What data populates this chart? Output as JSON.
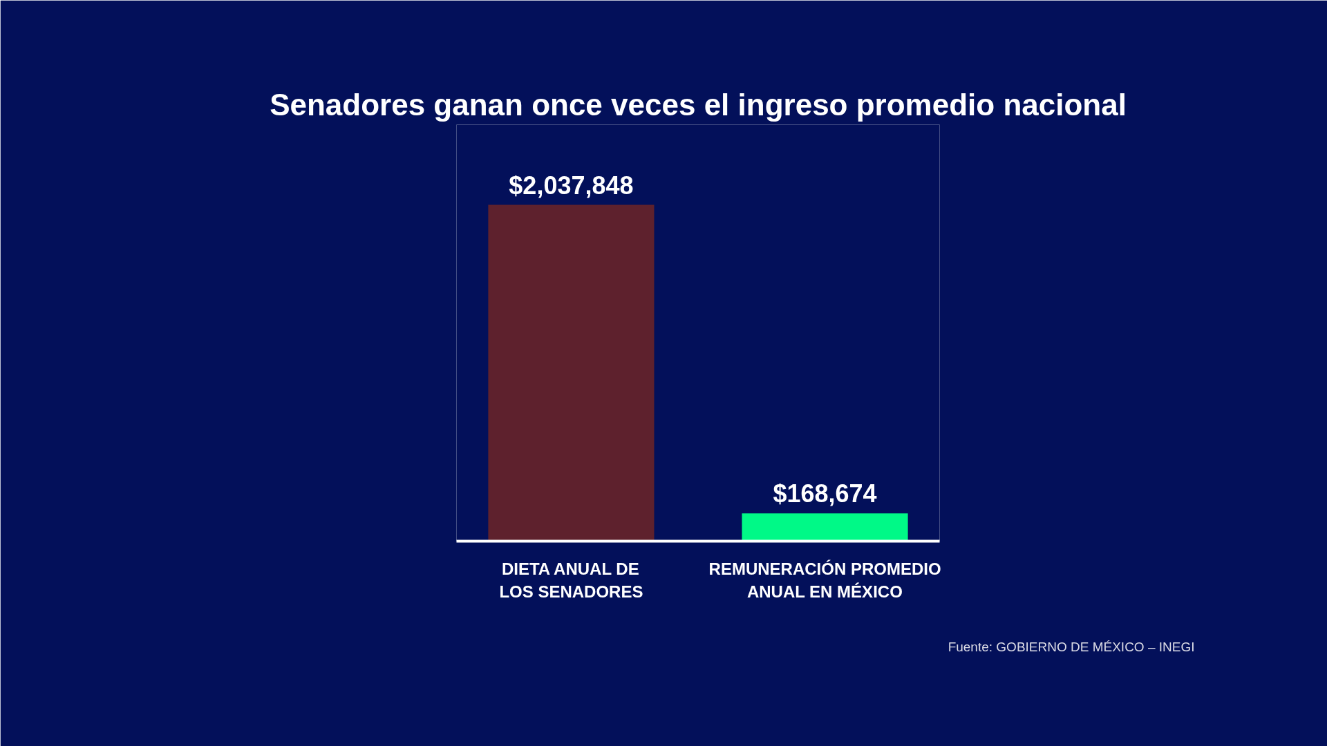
{
  "chart_data": {
    "type": "bar",
    "title": "Senadores ganan once veces el ingreso promedio nacional",
    "categories": [
      "DIETA ANUAL DE LOS SENADORES",
      "REMUNERACIÓN PROMEDIO ANUAL EN MÉXICO"
    ],
    "values": [
      2037848,
      168674
    ],
    "colors": [
      "#5e212d",
      "#00f987"
    ],
    "value_labels": [
      "$2,037,848",
      "$168,674"
    ],
    "annotations": [
      "Fuente: GOBIERNO DE MÉXICO – INEGI"
    ],
    "tick_labels": "x"
  }
}
